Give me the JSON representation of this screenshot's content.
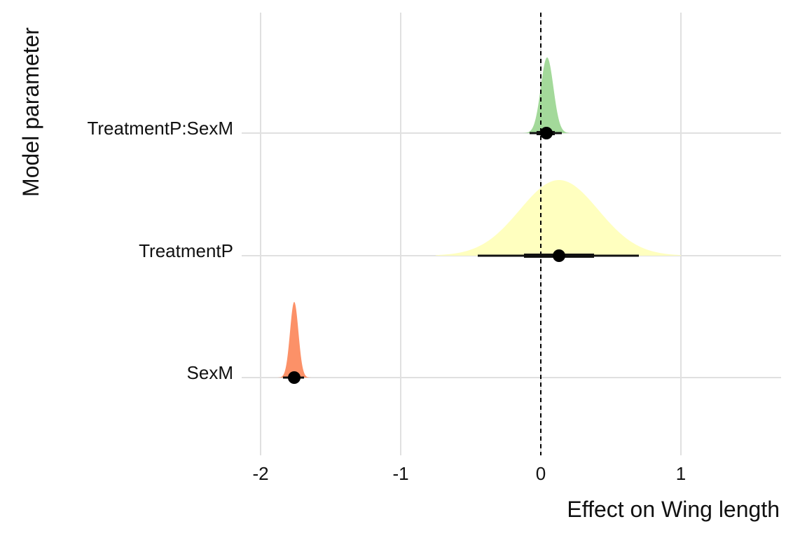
{
  "chart_data": {
    "type": "halfeye",
    "xlabel": "Effect on Wing length",
    "ylabel": "Model parameter",
    "xlim": [
      -2.1,
      1.7
    ],
    "x_ticks": [
      -2,
      -1,
      0,
      1
    ],
    "x_tick_labels": [
      "-2",
      "-1",
      "0",
      "1"
    ],
    "reference_line": 0,
    "grid": true,
    "series": [
      {
        "name": "TreatmentP:SexM",
        "color": "#a3d99a",
        "point": 0.04,
        "interval_66": [
          -0.03,
          0.1
        ],
        "interval_95": [
          -0.08,
          0.15
        ],
        "density_center": 0.045,
        "density_sd": 0.045,
        "density_range": [
          -0.15,
          0.2
        ]
      },
      {
        "name": "TreatmentP",
        "color": "#ffffbf",
        "point": 0.13,
        "interval_66": [
          -0.12,
          0.38
        ],
        "interval_95": [
          -0.45,
          0.7
        ],
        "density_center": 0.13,
        "density_sd": 0.28,
        "density_range": [
          -0.75,
          1.0
        ]
      },
      {
        "name": "SexM",
        "color": "#fc9168",
        "point": -1.76,
        "interval_66": [
          -1.79,
          -1.73
        ],
        "interval_95": [
          -1.84,
          -1.69
        ],
        "density_center": -1.76,
        "density_sd": 0.03,
        "density_range": [
          -1.9,
          -1.6
        ]
      }
    ]
  }
}
